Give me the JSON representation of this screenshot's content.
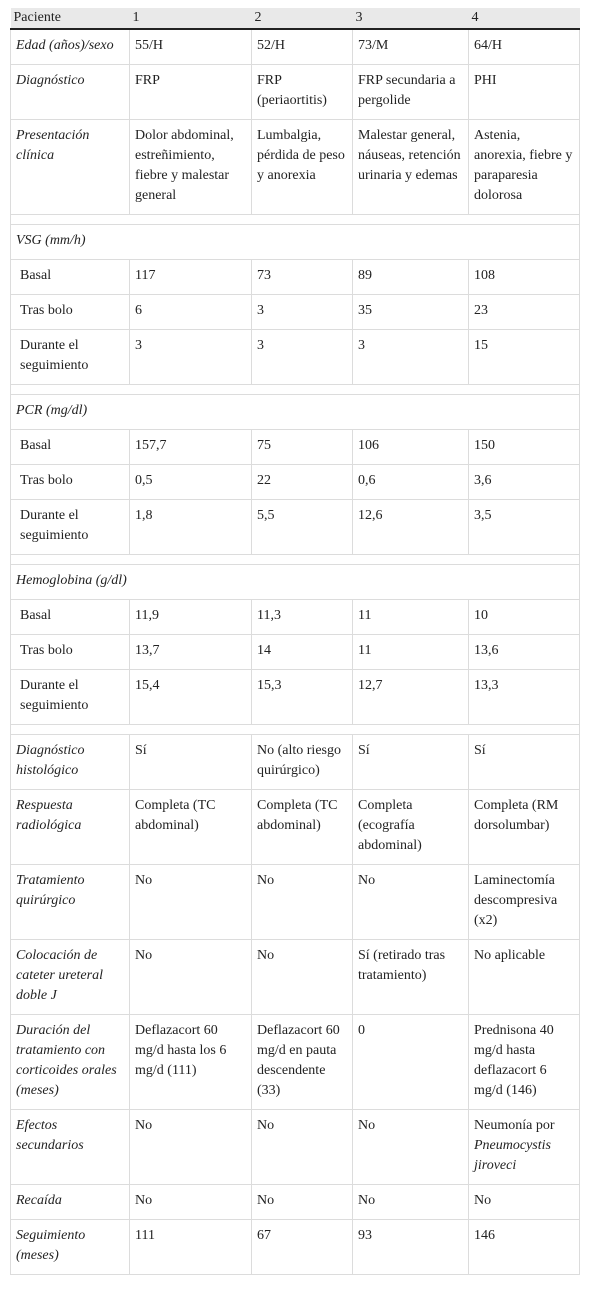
{
  "header": [
    "Paciente",
    "1",
    "2",
    "3",
    "4"
  ],
  "sections": {
    "vsg": "VSG (mm/h)",
    "pcr": "PCR (mg/dl)",
    "hb": "Hemoglobina (g/dl)"
  },
  "rows": {
    "edad": [
      "Edad (años)/sexo",
      "55/H",
      "52/H",
      "73/M",
      "64/H"
    ],
    "diag": [
      "Diagnóstico",
      "FRP",
      "FRP (periaortitis)",
      "FRP secundaria a pergolide",
      "PHI"
    ],
    "pres": [
      "Presentación clínica",
      "Dolor abdominal, estreñimiento, fiebre y malestar general",
      "Lumbalgia, pérdida de peso y anorexia",
      "Malestar general, náuseas, retención urinaria y edemas",
      "Astenia, anorexia, fiebre y paraparesia dolorosa"
    ],
    "vsg_basal": [
      "Basal",
      "117",
      "73",
      "89",
      "108"
    ],
    "vsg_tras": [
      "Tras bolo",
      "6",
      "3",
      "35",
      "23"
    ],
    "vsg_seg": [
      "Durante el seguimiento",
      "3",
      "3",
      "3",
      "15"
    ],
    "pcr_basal": [
      "Basal",
      "157,7",
      "75",
      "106",
      "150"
    ],
    "pcr_tras": [
      "Tras bolo",
      "0,5",
      "22",
      "0,6",
      "3,6"
    ],
    "pcr_seg": [
      "Durante el seguimiento",
      "1,8",
      "5,5",
      "12,6",
      "3,5"
    ],
    "hb_basal": [
      "Basal",
      "11,9",
      "11,3",
      "11",
      "10"
    ],
    "hb_tras": [
      "Tras bolo",
      "13,7",
      "14",
      "11",
      "13,6"
    ],
    "hb_seg": [
      "Durante el seguimiento",
      "15,4",
      "15,3",
      "12,7",
      "13,3"
    ],
    "histo": [
      "Diagnóstico histológico",
      "Sí",
      "No (alto riesgo quirúrgico)",
      "Sí",
      "Sí"
    ],
    "radio": [
      "Respuesta radiológica",
      "Completa (TC abdominal)",
      "Completa (TC abdominal)",
      "Completa (ecografía abdominal)",
      "Completa (RM dorsolumbar)"
    ],
    "quir": [
      "Tratamiento quirúrgico",
      "No",
      "No",
      "No",
      "Laminectomía descompresiva (x2)"
    ],
    "cateter": [
      "Colocación de cateter ureteral doble J",
      "No",
      "No",
      "Sí (retirado tras tratamiento)",
      "No aplicable"
    ],
    "dur": [
      "Duración del tratamiento con corticoides orales (meses)",
      "Deflazacort 60 mg/d hasta los 6 mg/d (111)",
      "Deflazacort 60 mg/d en pauta descendente (33)",
      "0",
      "Prednisona 40 mg/d hasta deflazacort 6 mg/d (146)"
    ],
    "efectos": [
      "Efectos secundarios",
      "No",
      "No",
      "No",
      "Neumonía por"
    ],
    "efectos_organism": "Pneumocystis jiroveci",
    "recaida": [
      "Recaída",
      "No",
      "No",
      "No",
      "No"
    ],
    "seg": [
      "Seguimiento (meses)",
      "111",
      "67",
      "93",
      "146"
    ]
  }
}
